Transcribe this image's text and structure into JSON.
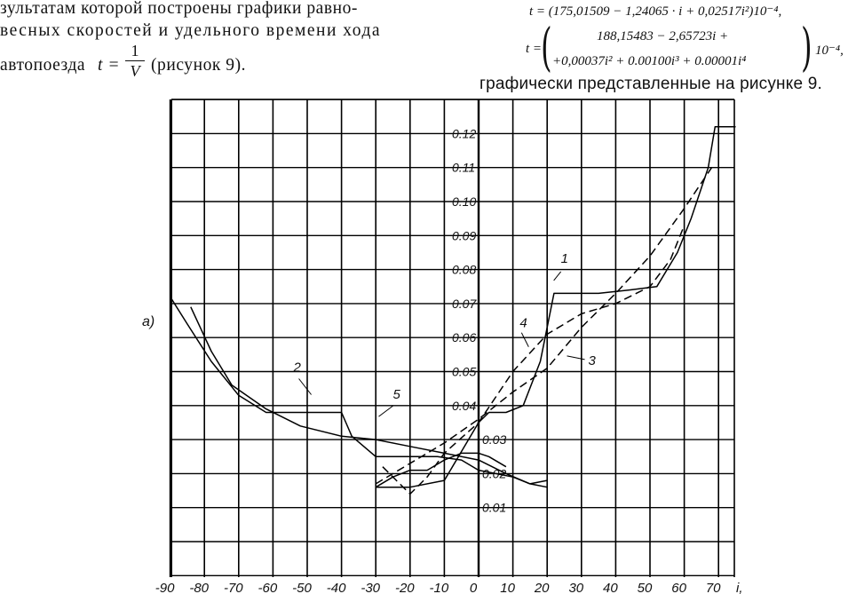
{
  "text": {
    "left_line1": "зультатам которой построены графики равно-",
    "left_line2": "весных скоростей и удельного времени хода",
    "left_line3_a": "автопоезда",
    "left_line3_b": "(рисунок 9).",
    "eq_t": "t =",
    "frac_num": "1",
    "frac_den": "V",
    "right_caption": "графически представленные на рисунке 9."
  },
  "formulas": {
    "f1": "t = (175,01509 − 1,24065 · i + 0,02517i²)10⁻⁴,",
    "f2_lhs": "t =",
    "f2_row1": "188,15483 − 2,65723i +",
    "f2_row2": "+0,00037i² + 0.00100i³ + 0.00001i⁴",
    "f2_tail": "10⁻⁴,"
  },
  "chart_data": {
    "type": "line",
    "panel_label": "a)",
    "x_ticks": [
      -90,
      -80,
      -70,
      -60,
      -50,
      -40,
      -30,
      -20,
      -10,
      0,
      10,
      20,
      30,
      40,
      50,
      60,
      70
    ],
    "x_tick_labels": [
      "-90",
      "-80",
      "-70",
      "-60",
      "-50",
      "-40",
      "-30",
      "-20",
      "-10",
      "0",
      "10",
      "20",
      "30",
      "40",
      "50",
      "60",
      "70"
    ],
    "xlabel": "i,",
    "y_ticks": [
      0.01,
      0.02,
      0.03,
      0.04,
      0.05,
      0.06,
      0.07,
      0.08,
      0.09,
      0.1,
      0.11,
      0.12
    ],
    "y_tick_labels": [
      "0.01",
      "0.02",
      "0.03",
      "0.04",
      "0.05",
      "0.06",
      "0.07",
      "0.08",
      "0.09",
      "0.10",
      "0.11",
      "0.12"
    ],
    "xlim": [
      -90,
      75
    ],
    "grid": true,
    "series": [
      {
        "name": "1",
        "style": "solid",
        "x": [
          -30,
          -20,
          -10,
          0,
          3,
          8,
          13,
          18,
          22,
          28,
          35,
          44,
          52,
          58,
          62,
          67,
          69,
          75
        ],
        "y": [
          0.016,
          0.016,
          0.018,
          0.035,
          0.038,
          0.038,
          0.04,
          0.053,
          0.073,
          0.073,
          0.073,
          0.074,
          0.075,
          0.085,
          0.095,
          0.11,
          0.122,
          0.122
        ]
      },
      {
        "name": "2",
        "style": "solid",
        "x": [
          -90,
          -85,
          -78,
          -70,
          -62,
          -55,
          -48,
          -40,
          -37,
          -30,
          -25,
          -20,
          -12,
          -5,
          0,
          5,
          10,
          15,
          20
        ],
        "y": [
          0.072,
          0.064,
          0.053,
          0.043,
          0.038,
          0.038,
          0.038,
          0.038,
          0.031,
          0.025,
          0.025,
          0.025,
          0.025,
          0.024,
          0.021,
          0.02,
          0.019,
          0.017,
          0.016
        ]
      },
      {
        "name": "3",
        "style": "dashed",
        "x": [
          -30,
          -20,
          -10,
          0,
          10,
          20,
          30,
          40,
          50,
          60,
          68
        ],
        "y": [
          0.017,
          0.023,
          0.029,
          0.036,
          0.044,
          0.051,
          0.063,
          0.073,
          0.084,
          0.098,
          0.11
        ]
      },
      {
        "name": "4",
        "style": "dashed",
        "x": [
          -28,
          -24,
          -20,
          -15,
          -10,
          0,
          10,
          20,
          30,
          40,
          50,
          56,
          60
        ],
        "y": [
          0.022,
          0.018,
          0.014,
          0.019,
          0.026,
          0.035,
          0.05,
          0.061,
          0.067,
          0.07,
          0.075,
          0.083,
          0.093
        ]
      },
      {
        "name": "5",
        "style": "solid",
        "x": [
          -84,
          -78,
          -72,
          -62,
          -52,
          -40,
          -30,
          -20,
          -10,
          0,
          8,
          15,
          20
        ],
        "y": [
          0.069,
          0.056,
          0.046,
          0.039,
          0.034,
          0.031,
          0.03,
          0.028,
          0.026,
          0.024,
          0.02,
          0.017,
          0.018
        ]
      },
      {
        "name": "",
        "style": "solid",
        "x": [
          -30,
          -25,
          -20,
          -15,
          -10,
          -5,
          0,
          3,
          8
        ],
        "y": [
          0.016,
          0.019,
          0.021,
          0.021,
          0.024,
          0.026,
          0.026,
          0.025,
          0.022
        ]
      }
    ],
    "curve_labels": [
      {
        "text": "1",
        "x": 24,
        "y": 0.082
      },
      {
        "text": "2",
        "x": -54,
        "y": 0.05
      },
      {
        "text": "3",
        "x": 32,
        "y": 0.052
      },
      {
        "text": "4",
        "x": 12,
        "y": 0.063
      },
      {
        "text": "5",
        "x": -25,
        "y": 0.042
      }
    ]
  }
}
